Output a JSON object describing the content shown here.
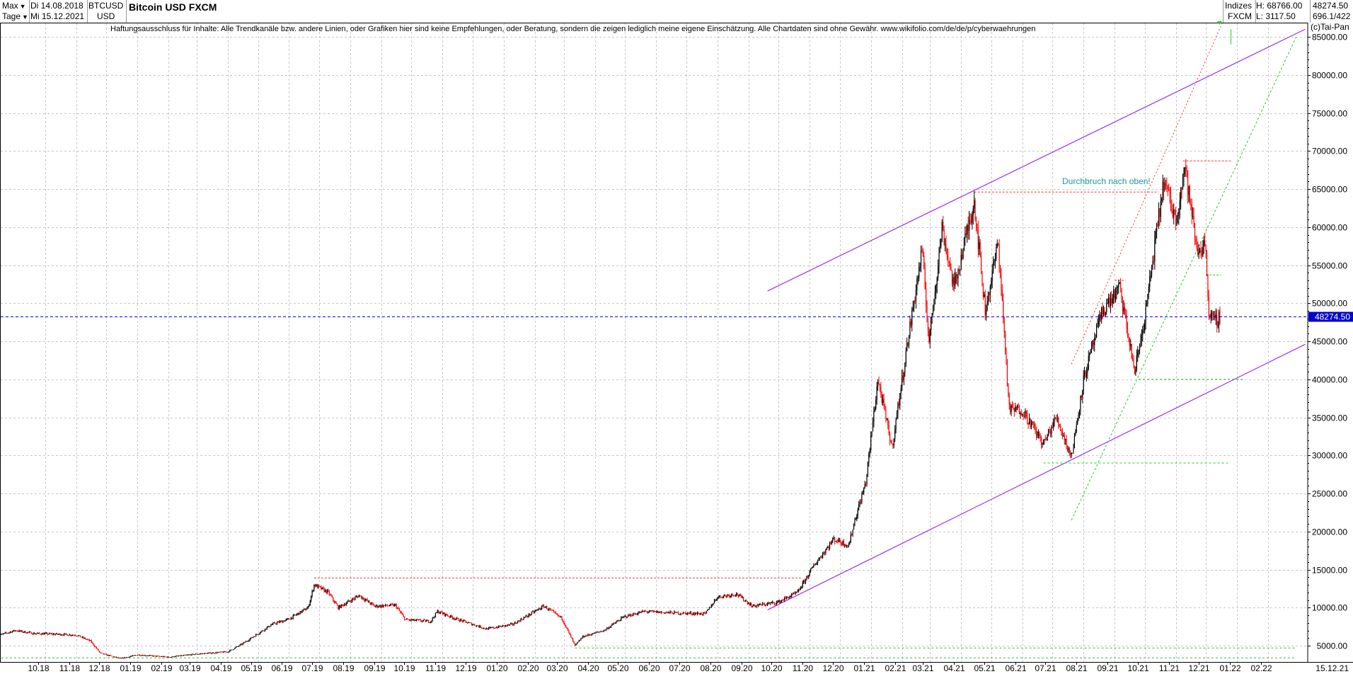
{
  "header": {
    "range_label": "Max",
    "interval_label": "Tage",
    "date_from": "Di 14.08.2018",
    "date_to": "Mi 15.12.2021",
    "symbol": "BTCUSD",
    "currency": "USD",
    "title": "Bitcoin USD FXCM",
    "market_group": "Indizes",
    "exchange": "FXCM",
    "high_label": "H: 68766.00",
    "low_label": "L: 3117.50",
    "last_value": "48274.50",
    "extra_value": "696.1/422"
  },
  "disclaimer": "Haftungsausschluss für Inhalte: Alle Trendkanäle bzw. andere Linien, oder Grafiken hier sind keine Empfehlungen, oder Beratung, sondern die zeigen lediglich meine eigene Einschätzung. Alle Chartdaten sind ohne Gewähr.  www.wikifolio.com/de/de/p/cyberwaehrungen",
  "copyright": "(c)Tai-Pan",
  "annotation": "Durchbruch nach oben!",
  "price_label": "48274.50",
  "x_end_label": "15.12.21",
  "colors": {
    "up_candle": "#000000",
    "down_candle": "#ff0000",
    "channel": "#9b30ff",
    "green_lines": "#22cc22",
    "red_lines": "#ff3333",
    "price_line": "#0000ff",
    "grid": "#c8c8c8"
  },
  "chart_data": {
    "type": "line",
    "title": "Bitcoin USD FXCM",
    "x_tick_labels": [
      "10.18",
      "11.18",
      "12.18",
      "01.19",
      "02.19",
      "03.19",
      "04.19",
      "05.19",
      "06.19",
      "07.19",
      "08.19",
      "09.19",
      "10.19",
      "11.19",
      "12.19",
      "01.20",
      "02.20",
      "03.20",
      "04.20",
      "05.20",
      "06.20",
      "07.20",
      "08.20",
      "09.20",
      "10.20",
      "11.20",
      "12.20",
      "01.21",
      "02.21",
      "03.21",
      "04.21",
      "05.21",
      "06.21",
      "07.21",
      "08.21",
      "09.21",
      "10.21",
      "11.21",
      "12.21",
      "01.22",
      "02.22"
    ],
    "y_tick_labels": [
      "5000.00",
      "10000.00",
      "15000.00",
      "20000.00",
      "25000.00",
      "30000.00",
      "35000.00",
      "40000.00",
      "45000.00",
      "50000.00",
      "55000.00",
      "60000.00",
      "65000.00",
      "70000.00",
      "75000.00",
      "80000.00",
      "85000.00"
    ],
    "ylim": [
      3000,
      88000
    ],
    "grid": true,
    "last_price": 48274.5,
    "series": [
      {
        "values_note": "",
        "points": [
          [
            "2018-08-14",
            6300
          ],
          [
            "2018-09-01",
            7000
          ],
          [
            "2018-09-20",
            6600
          ],
          [
            "2018-10-15",
            6500
          ],
          [
            "2018-11-01",
            6400
          ],
          [
            "2018-11-15",
            5600
          ],
          [
            "2018-11-25",
            4000
          ],
          [
            "2018-12-15",
            3300
          ],
          [
            "2019-01-01",
            3800
          ],
          [
            "2019-02-01",
            3500
          ],
          [
            "2019-03-01",
            3900
          ],
          [
            "2019-04-01",
            4200
          ],
          [
            "2019-04-15",
            5200
          ],
          [
            "2019-05-15",
            7800
          ],
          [
            "2019-06-01",
            8500
          ],
          [
            "2019-06-20",
            10000
          ],
          [
            "2019-06-26",
            13000
          ],
          [
            "2019-07-10",
            12000
          ],
          [
            "2019-07-20",
            10000
          ],
          [
            "2019-08-10",
            11600
          ],
          [
            "2019-08-25",
            10200
          ],
          [
            "2019-09-15",
            10300
          ],
          [
            "2019-09-25",
            8400
          ],
          [
            "2019-10-20",
            8200
          ],
          [
            "2019-10-27",
            9500
          ],
          [
            "2019-11-15",
            8500
          ],
          [
            "2019-12-15",
            7200
          ],
          [
            "2020-01-10",
            7800
          ],
          [
            "2020-02-10",
            10200
          ],
          [
            "2020-02-28",
            8600
          ],
          [
            "2020-03-12",
            5000
          ],
          [
            "2020-03-20",
            6200
          ],
          [
            "2020-04-10",
            7000
          ],
          [
            "2020-04-30",
            8800
          ],
          [
            "2020-05-20",
            9500
          ],
          [
            "2020-06-20",
            9300
          ],
          [
            "2020-07-20",
            9200
          ],
          [
            "2020-08-01",
            11400
          ],
          [
            "2020-08-20",
            11800
          ],
          [
            "2020-09-05",
            10200
          ],
          [
            "2020-09-30",
            10700
          ],
          [
            "2020-10-20",
            12000
          ],
          [
            "2020-11-05",
            15500
          ],
          [
            "2020-11-25",
            19000
          ],
          [
            "2020-12-10",
            18200
          ],
          [
            "2020-12-16",
            21500
          ],
          [
            "2020-12-27",
            26500
          ],
          [
            "2021-01-08",
            40000
          ],
          [
            "2021-01-22",
            31000
          ],
          [
            "2021-02-08",
            46000
          ],
          [
            "2021-02-21",
            57000
          ],
          [
            "2021-02-28",
            45000
          ],
          [
            "2021-03-13",
            60000
          ],
          [
            "2021-03-25",
            52000
          ],
          [
            "2021-04-14",
            63500
          ],
          [
            "2021-04-25",
            49000
          ],
          [
            "2021-05-08",
            58000
          ],
          [
            "2021-05-12",
            50000
          ],
          [
            "2021-05-19",
            36000
          ],
          [
            "2021-06-01",
            36000
          ],
          [
            "2021-06-22",
            31500
          ],
          [
            "2021-07-05",
            35000
          ],
          [
            "2021-07-20",
            29800
          ],
          [
            "2021-08-01",
            40000
          ],
          [
            "2021-08-20",
            49000
          ],
          [
            "2021-09-06",
            52000
          ],
          [
            "2021-09-21",
            41000
          ],
          [
            "2021-10-01",
            48000
          ],
          [
            "2021-10-20",
            66000
          ],
          [
            "2021-11-01",
            61000
          ],
          [
            "2021-11-10",
            68000
          ],
          [
            "2021-11-22",
            57000
          ],
          [
            "2021-12-01",
            57500
          ],
          [
            "2021-12-04",
            48500
          ],
          [
            "2021-12-10",
            47500
          ],
          [
            "2021-12-15",
            48274
          ]
        ]
      }
    ]
  }
}
